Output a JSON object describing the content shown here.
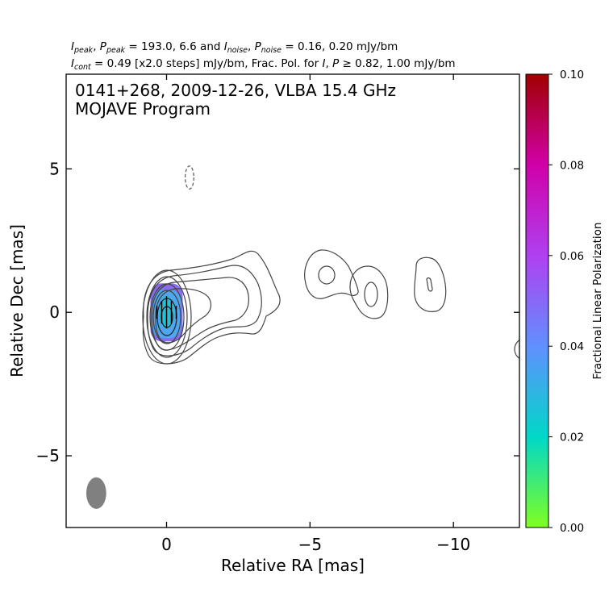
{
  "chart_data": {
    "type": "contour",
    "header": {
      "line1": {
        "peak_label": "peak",
        "peak_values": "193.0, 6.6",
        "noise_label": "noise",
        "noise_values": "0.16, 0.20 mJy/bm"
      },
      "line2": {
        "cont_label": "cont",
        "cont_value": "0.49 [x2.0 steps] mJy/bm, Frac. Pol. for",
        "frac_values": "0.82, 1.00 mJy/bm"
      }
    },
    "title_line1": "0141+268, 2009-12-26, VLBA 15.4 GHz",
    "title_line2": "MOJAVE Program",
    "xlabel": "Relative RA [mas]",
    "ylabel": "Relative Dec [mas]",
    "xlim": [
      3.5,
      -12.3
    ],
    "ylim": [
      -7.5,
      8.3
    ],
    "xticks": [
      {
        "value": 0,
        "label": "0"
      },
      {
        "value": -5,
        "label": "−5"
      },
      {
        "value": -10,
        "label": "−10"
      }
    ],
    "yticks": [
      {
        "value": 5,
        "label": "5"
      },
      {
        "value": 0,
        "label": "0"
      },
      {
        "value": -5,
        "label": "−5"
      }
    ],
    "core": {
      "x": 0,
      "y": 0
    },
    "beam": {
      "x": 2.45,
      "y": -6.3,
      "major_mas": 1.05,
      "minor_mas": 0.58,
      "pa_deg": 0
    },
    "colorbar": {
      "label": "Fractional Linear Polarization",
      "min": 0.0,
      "max": 0.1,
      "ticks": [
        "0.00",
        "0.02",
        "0.04",
        "0.06",
        "0.08",
        "0.10"
      ],
      "colors": [
        "#80ff20",
        "#00d8c8",
        "#6090ff",
        "#b040f0",
        "#d000a8",
        "#a00000"
      ]
    },
    "negative_contour": {
      "x": -0.8,
      "y": 4.7,
      "rx": 0.15,
      "ry": 0.4
    },
    "polarization_colors": {
      "outer": "#8a6cf0",
      "mid": "#4fa6ee",
      "inner": "#25c0d8"
    }
  }
}
